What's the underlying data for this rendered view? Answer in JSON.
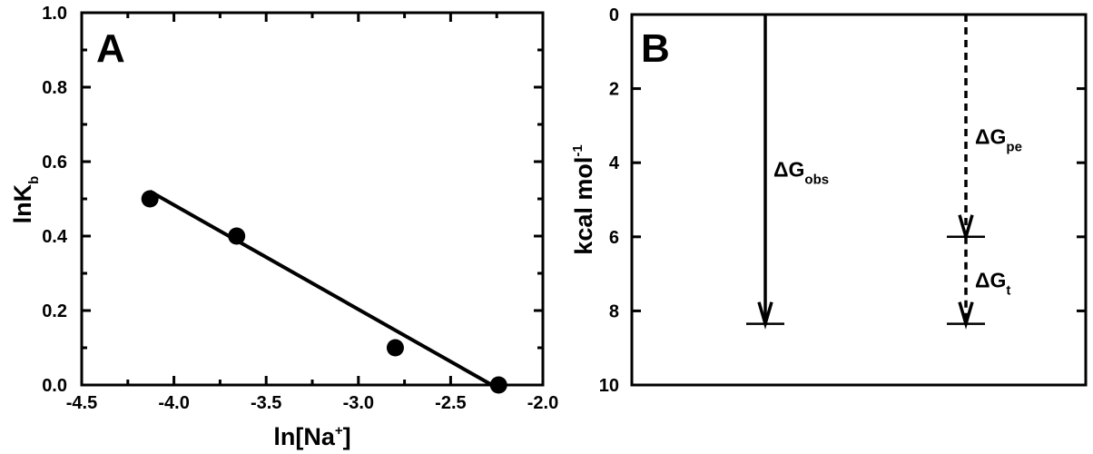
{
  "chart_data": [
    {
      "type": "scatter",
      "panel_label": "A",
      "xlabel_main": "ln[Na",
      "xlabel_sup": "+",
      "xlabel_end": "]",
      "ylabel_main": "lnK",
      "ylabel_sub": "b",
      "xlim": [
        -4.5,
        -2.0
      ],
      "ylim": [
        0.0,
        1.0
      ],
      "xticks": [
        -4.5,
        -4.0,
        -3.5,
        -3.0,
        -2.5,
        -2.0
      ],
      "xtick_labels": [
        "-4.5",
        "-4.0",
        "-3.5",
        "-3.0",
        "-2.5",
        "-2.0"
      ],
      "yticks": [
        0.0,
        0.2,
        0.4,
        0.6,
        0.8,
        1.0
      ],
      "ytick_labels": [
        "0.0",
        "0.2",
        "0.4",
        "0.6",
        "0.8",
        "1.0"
      ],
      "x": [
        -4.13,
        -3.66,
        -2.8,
        -2.24
      ],
      "y": [
        0.5,
        0.4,
        0.1,
        0.0
      ],
      "fit_line": {
        "x": [
          -4.13,
          -2.24
        ],
        "y": [
          0.52,
          -0.01
        ]
      },
      "grid": false,
      "legend": "none"
    },
    {
      "type": "diagram",
      "panel_label": "B",
      "ylabel_main": "kcal mol",
      "ylabel_sup": "-1",
      "ylim": [
        0,
        10
      ],
      "y_inverted": true,
      "yticks": [
        0,
        2,
        4,
        6,
        8,
        10
      ],
      "ytick_labels": [
        "0",
        "2",
        "4",
        "6",
        "8",
        "10"
      ],
      "arrows": [
        {
          "name": "obs",
          "label_main": "ΔG",
          "label_sub": "obs",
          "from": 0,
          "to": 8.35,
          "style": "solid"
        },
        {
          "name": "pe",
          "label_main": "ΔG",
          "label_sub": "pe",
          "from": 0,
          "to": 6.0,
          "style": "dashed"
        },
        {
          "name": "t",
          "label_main": "ΔG",
          "label_sub": "t",
          "from": 6.0,
          "to": 8.35,
          "style": "dashed"
        }
      ],
      "grid": false,
      "legend": "none"
    }
  ]
}
